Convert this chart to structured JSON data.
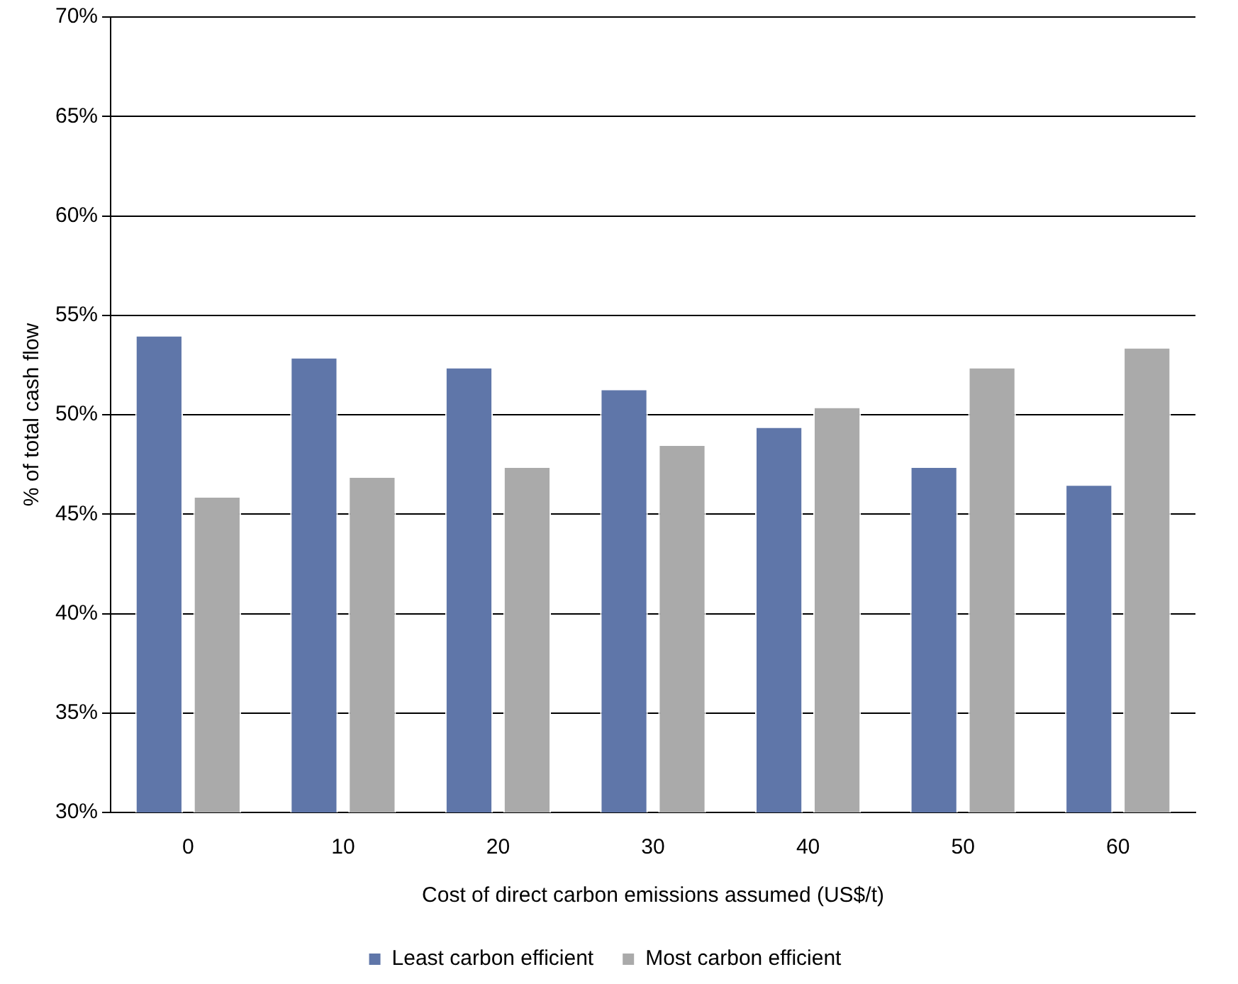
{
  "chart_data": {
    "type": "bar",
    "xlabel": "Cost of direct carbon emissions assumed (US$/t)",
    "ylabel": "% of total cash flow",
    "categories": [
      "0",
      "10",
      "20",
      "30",
      "40",
      "50",
      "60"
    ],
    "series": [
      {
        "name": "Least carbon efficient",
        "color": "#5f76a9",
        "values": [
          54.0,
          52.9,
          52.4,
          51.3,
          49.4,
          47.4,
          46.5
        ]
      },
      {
        "name": "Most carbon efficient",
        "color": "#aaaaaa",
        "values": [
          45.9,
          46.9,
          47.4,
          48.5,
          50.4,
          52.4,
          53.4
        ]
      }
    ],
    "ylim": [
      30,
      70
    ],
    "yticks": [
      {
        "value": 30,
        "label": "30%"
      },
      {
        "value": 35,
        "label": "35%"
      },
      {
        "value": 40,
        "label": "40%"
      },
      {
        "value": 45,
        "label": "45%"
      },
      {
        "value": 50,
        "label": "50%"
      },
      {
        "value": 55,
        "label": "55%"
      },
      {
        "value": 60,
        "label": "60%"
      },
      {
        "value": 65,
        "label": "65%"
      },
      {
        "value": 70,
        "label": "70%"
      }
    ],
    "grid": "y",
    "legend": "bottom"
  }
}
